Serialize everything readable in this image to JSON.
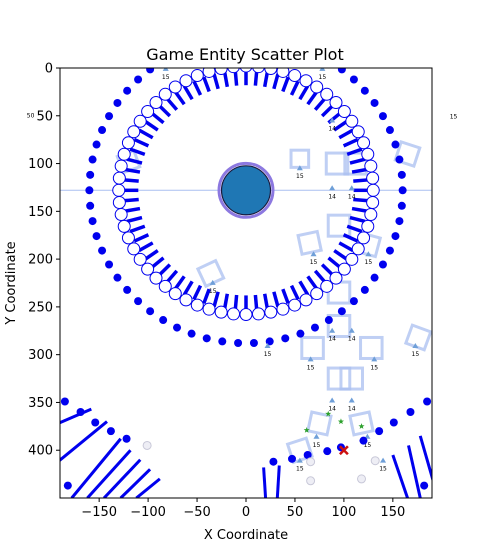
{
  "chart_data": {
    "type": "scatter",
    "title": "Game Entity Scatter Plot",
    "xlabel": "X Coordinate",
    "ylabel": "Y Coordinate",
    "xlim": [
      -190,
      190
    ],
    "ylim": [
      450,
      0
    ],
    "y_inverted": true,
    "grid": false,
    "x_ticks": [
      -150,
      -100,
      -50,
      0,
      50,
      100,
      150
    ],
    "y_ticks": [
      0,
      50,
      100,
      150,
      200,
      250,
      300,
      350,
      400
    ],
    "colors": {
      "blue": "#0000ee",
      "light_blue": "#aabff0",
      "fill_blue": "#1f77b4",
      "halo": "#8c78e0",
      "green": "#2ca02c",
      "red": "#cc1111",
      "gray": "#c8c8d8"
    },
    "center_entity": {
      "x": 0,
      "y": 128,
      "r_data": 25
    },
    "crosshair": {
      "x": 0,
      "y": 128
    },
    "outer_ring": {
      "cx": 0,
      "cy": 128,
      "r": 160,
      "count": 62
    },
    "inner_ring": {
      "cx": 0,
      "cy": 128,
      "r": 130,
      "count": 64
    },
    "dash_ring": {
      "cx": 0,
      "cy": 128,
      "r1": 110,
      "r2": 126,
      "count": 72
    },
    "markers": [
      {
        "x": 55,
        "y": 107,
        "label": "15"
      },
      {
        "x": 88,
        "y": 128,
        "label": "14"
      },
      {
        "x": 108,
        "y": 128,
        "label": "14"
      },
      {
        "x": 69,
        "y": 197,
        "label": "15"
      },
      {
        "x": 125,
        "y": 197,
        "label": "15"
      },
      {
        "x": -34,
        "y": 227,
        "label": "15"
      },
      {
        "x": 88,
        "y": 277,
        "label": "14"
      },
      {
        "x": 108,
        "y": 277,
        "label": "14"
      },
      {
        "x": 22,
        "y": 293,
        "label": "15"
      },
      {
        "x": 66,
        "y": 307,
        "label": "15"
      },
      {
        "x": 131,
        "y": 307,
        "label": "15"
      },
      {
        "x": 173,
        "y": 293,
        "label": "15"
      },
      {
        "x": 88,
        "y": 350,
        "label": "14"
      },
      {
        "x": 108,
        "y": 350,
        "label": "14"
      },
      {
        "x": 72,
        "y": 388,
        "label": "15"
      },
      {
        "x": 124,
        "y": 388,
        "label": "15"
      },
      {
        "x": 55,
        "y": 413,
        "label": "15"
      },
      {
        "x": 140,
        "y": 413,
        "label": "15"
      },
      {
        "x": -82,
        "y": 3,
        "label": "15"
      },
      {
        "x": 78,
        "y": 3,
        "label": "15"
      },
      {
        "x": 88,
        "y": -13,
        "label": "14"
      },
      {
        "x": 108,
        "y": -13,
        "label": "14"
      },
      {
        "x": 88,
        "y": 57,
        "label": "14"
      }
    ],
    "outlined_squares": [
      {
        "x": 55,
        "y": 95,
        "size": 18,
        "angle": 0
      },
      {
        "x": 93,
        "y": 100,
        "size": 22,
        "angle": 0
      },
      {
        "x": 112,
        "y": 100,
        "size": 22,
        "angle": 0
      },
      {
        "x": 95,
        "y": 165,
        "size": 22,
        "angle": 0
      },
      {
        "x": 65,
        "y": 183,
        "size": 20,
        "angle": -12
      },
      {
        "x": 125,
        "y": 185,
        "size": 20,
        "angle": 15
      },
      {
        "x": -36,
        "y": 215,
        "size": 20,
        "angle": -25
      },
      {
        "x": 95,
        "y": 235,
        "size": 22,
        "angle": 0
      },
      {
        "x": 95,
        "y": 270,
        "size": 22,
        "angle": 0
      },
      {
        "x": 68,
        "y": 293,
        "size": 22,
        "angle": 0
      },
      {
        "x": 128,
        "y": 293,
        "size": 22,
        "angle": 0
      },
      {
        "x": 176,
        "y": 282,
        "size": 20,
        "angle": 20
      },
      {
        "x": 95,
        "y": 325,
        "size": 22,
        "angle": 0
      },
      {
        "x": 108,
        "y": 325,
        "size": 22,
        "angle": 0
      },
      {
        "x": 75,
        "y": 372,
        "size": 20,
        "angle": 12
      },
      {
        "x": 118,
        "y": 372,
        "size": 20,
        "angle": -12
      },
      {
        "x": 55,
        "y": 400,
        "size": 20,
        "angle": -18
      },
      {
        "x": 165,
        "y": 90,
        "size": 20,
        "angle": 18
      },
      {
        "x": -120,
        "y": 98,
        "size": 18,
        "angle": -20
      }
    ],
    "bottom_dots": [
      {
        "x": -185,
        "y": 349
      },
      {
        "x": -169,
        "y": 360
      },
      {
        "x": -154,
        "y": 371
      },
      {
        "x": -138,
        "y": 380
      },
      {
        "x": -122,
        "y": 388
      },
      {
        "x": -182,
        "y": 437
      },
      {
        "x": 28,
        "y": 412
      },
      {
        "x": 47,
        "y": 409
      },
      {
        "x": 63,
        "y": 405
      },
      {
        "x": 83,
        "y": 401
      },
      {
        "x": 97,
        "y": 397
      },
      {
        "x": 120,
        "y": 390
      },
      {
        "x": 136,
        "y": 380
      },
      {
        "x": 151,
        "y": 371
      },
      {
        "x": 168,
        "y": 360
      },
      {
        "x": 185,
        "y": 349
      },
      {
        "x": 182,
        "y": 437
      }
    ],
    "gray_dots": [
      {
        "x": -101,
        "y": 395
      },
      {
        "x": 66,
        "y": 412
      },
      {
        "x": 66,
        "y": 432
      },
      {
        "x": 132,
        "y": 411
      },
      {
        "x": 118,
        "y": 430
      }
    ],
    "green_stars": [
      {
        "x": 84,
        "y": 362
      },
      {
        "x": 97,
        "y": 370
      },
      {
        "x": 118,
        "y": 375
      },
      {
        "x": 62,
        "y": 379
      }
    ],
    "red_x": [
      {
        "x": 100,
        "y": 400
      }
    ],
    "bottom_spokes": [
      {
        "x1": -192,
        "y1": 372,
        "x2": -158,
        "y2": 357
      },
      {
        "x1": -192,
        "y1": 412,
        "x2": -142,
        "y2": 370
      },
      {
        "x1": -178,
        "y1": 450,
        "x2": -128,
        "y2": 388
      },
      {
        "x1": -162,
        "y1": 450,
        "x2": -118,
        "y2": 400
      },
      {
        "x1": -145,
        "y1": 450,
        "x2": -108,
        "y2": 410
      },
      {
        "x1": -128,
        "y1": 450,
        "x2": -98,
        "y2": 420
      },
      {
        "x1": -112,
        "y1": 450,
        "x2": -88,
        "y2": 430
      },
      {
        "x1": 20,
        "y1": 450,
        "x2": 18,
        "y2": 418
      },
      {
        "x1": 32,
        "y1": 450,
        "x2": 34,
        "y2": 416
      },
      {
        "x1": 165,
        "y1": 450,
        "x2": 150,
        "y2": 405
      },
      {
        "x1": 178,
        "y1": 450,
        "x2": 166,
        "y2": 395
      },
      {
        "x1": 192,
        "y1": 435,
        "x2": 178,
        "y2": 385
      }
    ],
    "edge_labels": [
      {
        "label": "15",
        "x": 212,
        "y": 53
      },
      {
        "label": "50",
        "x": -220,
        "y": 52
      }
    ]
  }
}
